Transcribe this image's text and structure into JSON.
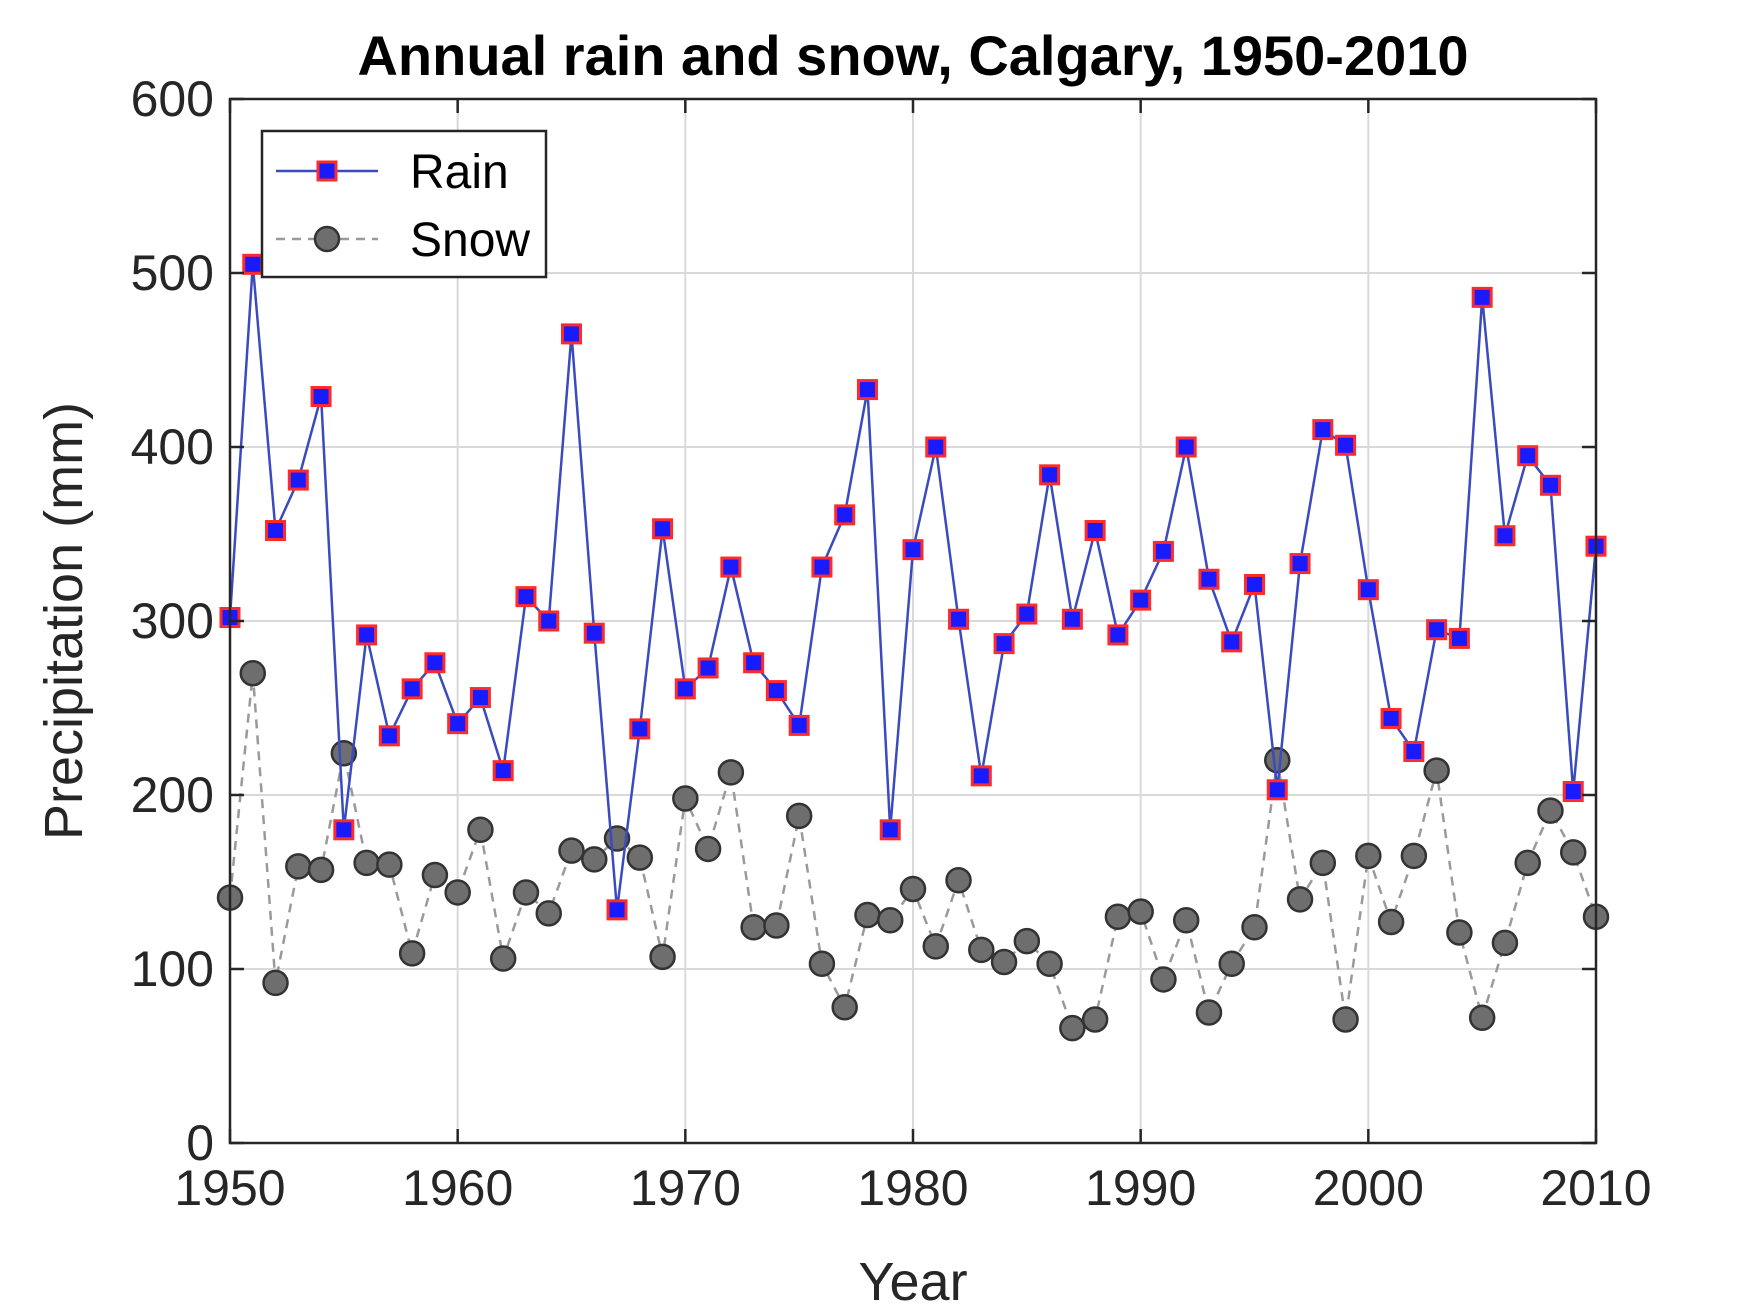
{
  "chart_data": {
    "type": "line",
    "title": "Annual rain and snow, Calgary, 1950-2010",
    "xlabel": "Year",
    "ylabel": "Precipitation (mm)",
    "xlim": [
      1950,
      2010
    ],
    "ylim": [
      0,
      600
    ],
    "xticks": [
      1950,
      1960,
      1970,
      1980,
      1990,
      2000,
      2010
    ],
    "yticks": [
      0,
      100,
      200,
      300,
      400,
      500,
      600
    ],
    "grid": true,
    "legend_position": "top-left",
    "x": [
      1950,
      1951,
      1952,
      1953,
      1954,
      1955,
      1956,
      1957,
      1958,
      1959,
      1960,
      1961,
      1962,
      1963,
      1964,
      1965,
      1966,
      1967,
      1968,
      1969,
      1970,
      1971,
      1972,
      1973,
      1974,
      1975,
      1976,
      1977,
      1978,
      1979,
      1980,
      1981,
      1982,
      1983,
      1984,
      1985,
      1986,
      1987,
      1988,
      1989,
      1990,
      1991,
      1992,
      1993,
      1994,
      1995,
      1996,
      1997,
      1998,
      1999,
      2000,
      2001,
      2002,
      2003,
      2004,
      2005,
      2006,
      2007,
      2008,
      2009,
      2010
    ],
    "series": [
      {
        "name": "Rain",
        "style": "solid",
        "line_color": "#3a4bbf",
        "marker": "square",
        "marker_fill": "#1a1aff",
        "marker_edge": "#ff2a2a",
        "values": [
          302,
          505,
          352,
          381,
          429,
          180,
          292,
          234,
          261,
          276,
          241,
          256,
          214,
          314,
          300,
          465,
          293,
          134,
          238,
          353,
          261,
          273,
          331,
          276,
          260,
          240,
          331,
          361,
          433,
          180,
          341,
          400,
          301,
          211,
          287,
          304,
          384,
          301,
          352,
          292,
          312,
          340,
          400,
          324,
          288,
          321,
          203,
          333,
          410,
          401,
          318,
          244,
          225,
          295,
          290,
          486,
          349,
          395,
          378,
          202,
          343
        ]
      },
      {
        "name": "Snow",
        "style": "dashed",
        "line_color": "#9a9a9a",
        "marker": "circle",
        "marker_fill": "#6e6e6e",
        "marker_edge": "#333333",
        "values": [
          141,
          270,
          92,
          159,
          157,
          224,
          161,
          160,
          109,
          154,
          144,
          180,
          106,
          144,
          132,
          168,
          163,
          175,
          164,
          107,
          198,
          169,
          213,
          124,
          125,
          188,
          103,
          78,
          131,
          128,
          146,
          113,
          151,
          111,
          104,
          116,
          103,
          66,
          71,
          130,
          133,
          94,
          128,
          75,
          103,
          124,
          220,
          140,
          161,
          71,
          165,
          127,
          165,
          214,
          121,
          72,
          115,
          161,
          191,
          167,
          130
        ]
      }
    ]
  }
}
